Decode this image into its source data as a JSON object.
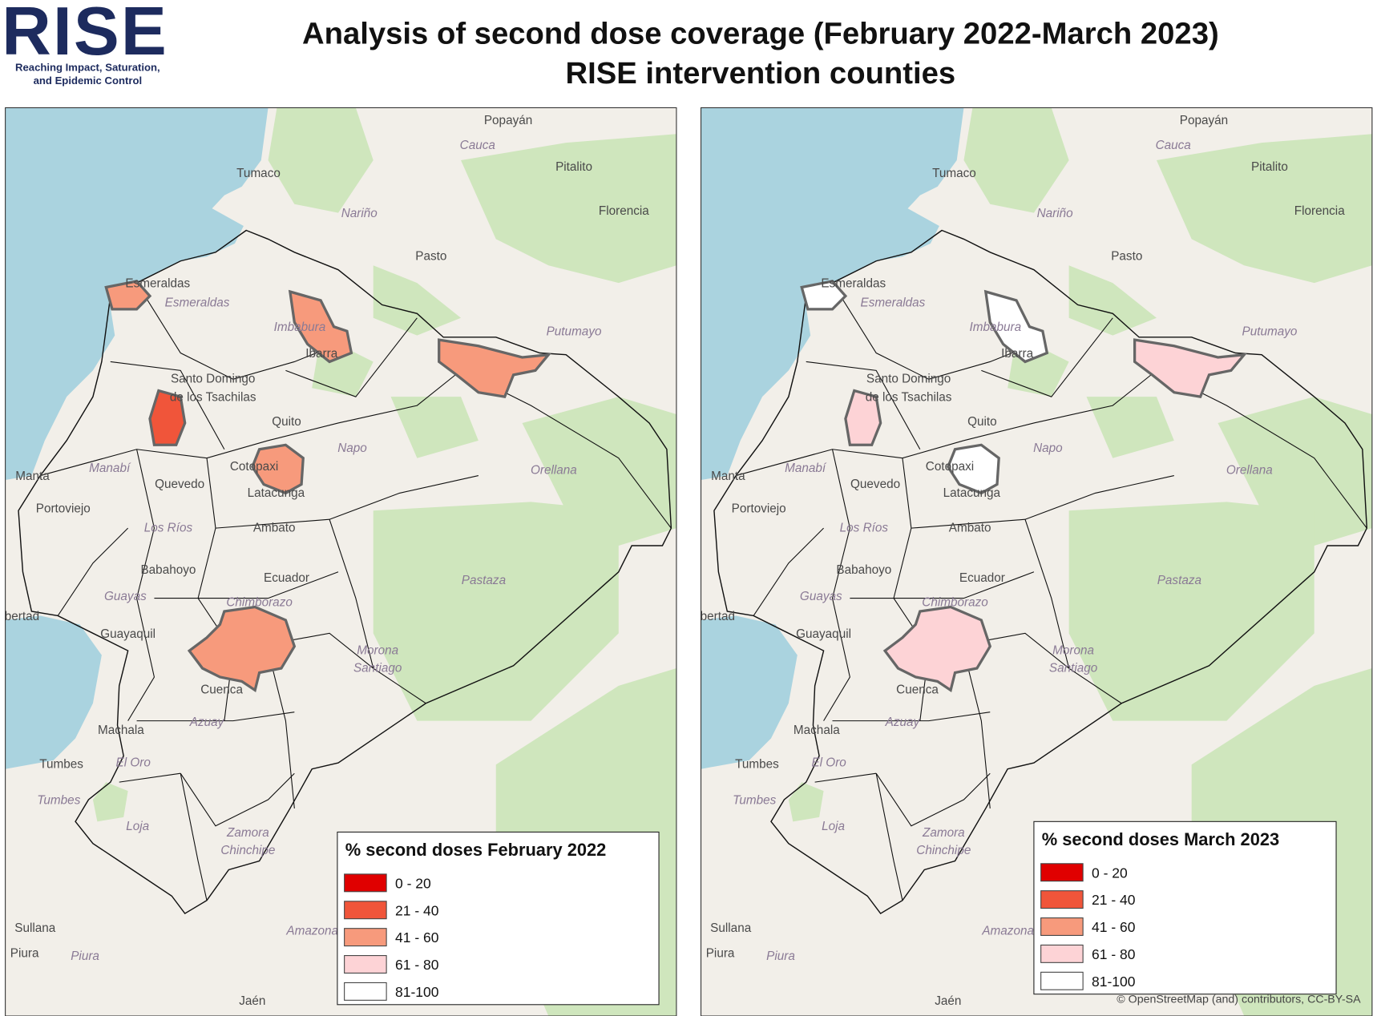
{
  "logo": {
    "name": "RISE",
    "tagline_1": "Reaching Impact, Saturation,",
    "tagline_2": "and Epidemic Control"
  },
  "title": [
    "Analysis of second dose coverage (February 2022-March 2023)",
    "RISE intervention counties"
  ],
  "maps": [
    {
      "legend": {
        "title": "% second doses February 2022",
        "items": [
          {
            "label": "0 - 20",
            "color": "#e00000"
          },
          {
            "label": "21 - 40",
            "color": "#f0553a"
          },
          {
            "label": "41 - 60",
            "color": "#f79a7c"
          },
          {
            "label": "61 - 80",
            "color": "#fdd3d6"
          },
          {
            "label": "81-100",
            "color": "#ffffff"
          }
        ]
      }
    },
    {
      "legend": {
        "title": "% second doses March 2023",
        "items": [
          {
            "label": "0 - 20",
            "color": "#e00000"
          },
          {
            "label": "21 - 40",
            "color": "#f0553a"
          },
          {
            "label": "41 - 60",
            "color": "#f79a7c"
          },
          {
            "label": "61 - 80",
            "color": "#fdd3d6"
          },
          {
            "label": "81-100",
            "color": "#ffffff"
          }
        ]
      }
    }
  ],
  "places": [
    "Popayán",
    "Cauca",
    "Pitalito",
    "Tumaco",
    "Florencia",
    "Nariño",
    "Pasto",
    "Esmeraldas",
    "Esmeraldas",
    "Imbabura",
    "Ibarra",
    "Putumayo",
    "Santo Domingo",
    "de los Tsachilas",
    "Quito",
    "Napo",
    "Orellana",
    "Manta",
    "Manabí",
    "Cotopaxi",
    "Quevedo",
    "Latacunga",
    "Portoviejo",
    "Los Ríos",
    "Ambato",
    "Babahoyo",
    "Ecuador",
    "Pastaza",
    "Guayas",
    "Chimborazo",
    "bertad",
    "Guayaquil",
    "Morona",
    "Santiago",
    "Cuenca",
    "Azuay",
    "Machala",
    "Tumbes",
    "El Oro",
    "Tumbes",
    "Loja",
    "Zamora",
    "Chinchipe",
    "Sullana",
    "Amazonas",
    "Piura",
    "Piura",
    "Jaén"
  ],
  "attribution": "© OpenStreetMap (and) contributors, CC-BY-SA"
}
